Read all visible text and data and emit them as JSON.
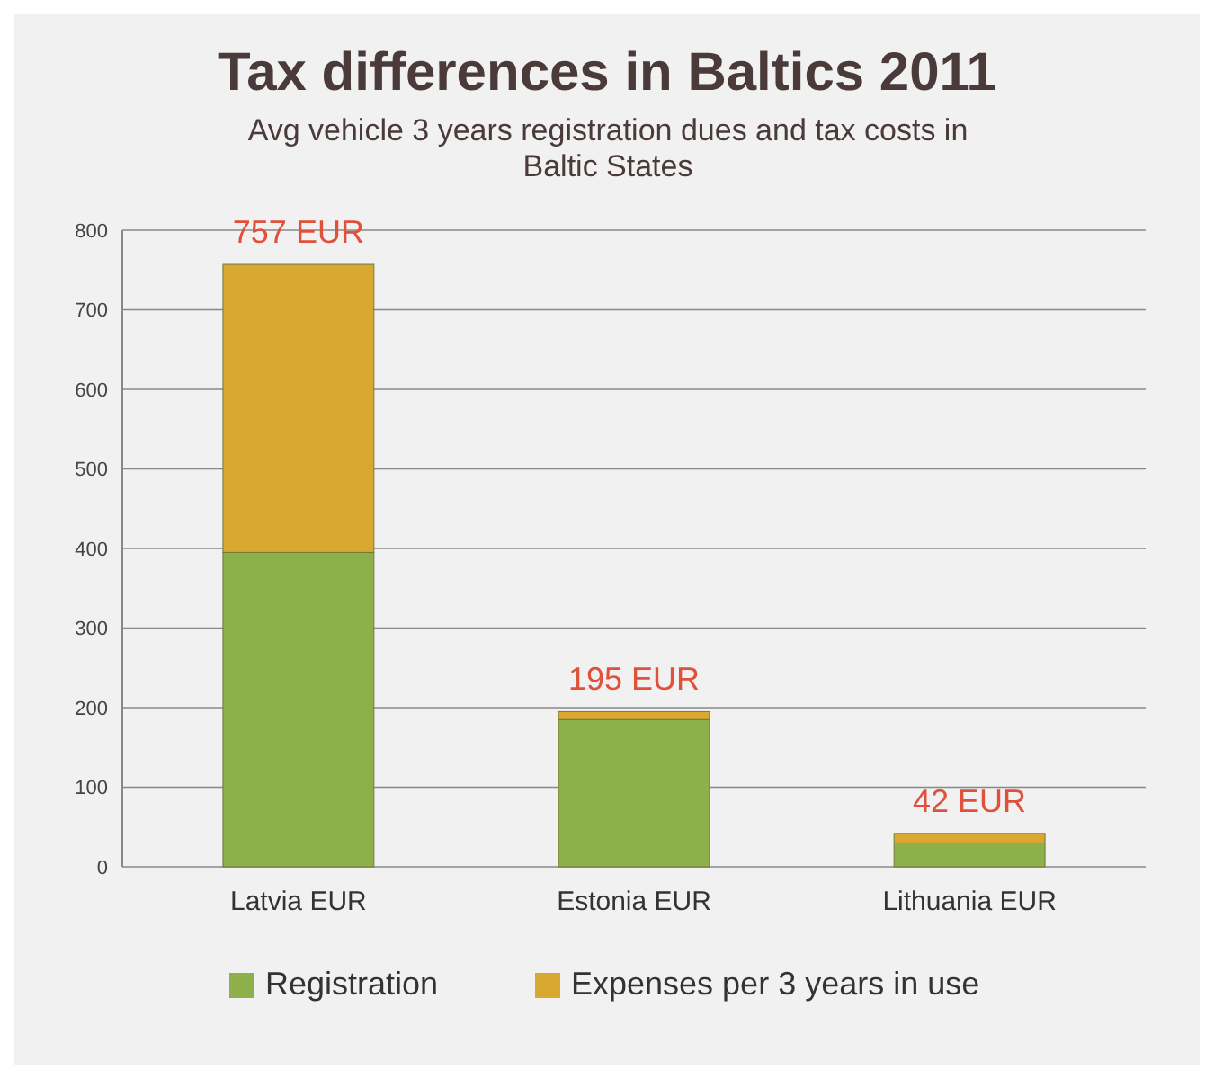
{
  "chart_data": {
    "type": "bar",
    "title": "Tax differences in Baltics 2011",
    "subtitle": "Avg vehicle 3 years registration  dues and tax costs in Baltic States",
    "categories": [
      "Latvia EUR",
      "Estonia EUR",
      "Lithuania EUR"
    ],
    "stacked": true,
    "series": [
      {
        "name": "Registration",
        "color": "#8db04a",
        "values": [
          395,
          185,
          30
        ]
      },
      {
        "name": "Expenses per 3 years in use",
        "color": "#d9a830",
        "values": [
          362,
          10,
          12
        ]
      }
    ],
    "totals": [
      "757 EUR",
      "195 EUR",
      "42 EUR"
    ],
    "ylim": [
      0,
      800
    ],
    "yticks": [
      0,
      100,
      200,
      300,
      400,
      500,
      600,
      700,
      800
    ],
    "grid": "y",
    "legend": "bottom"
  }
}
